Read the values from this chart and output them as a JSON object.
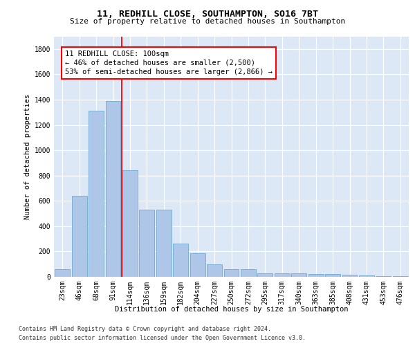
{
  "title1": "11, REDHILL CLOSE, SOUTHAMPTON, SO16 7BT",
  "title2": "Size of property relative to detached houses in Southampton",
  "xlabel": "Distribution of detached houses by size in Southampton",
  "ylabel": "Number of detached properties",
  "categories": [
    "23sqm",
    "46sqm",
    "68sqm",
    "91sqm",
    "114sqm",
    "136sqm",
    "159sqm",
    "182sqm",
    "204sqm",
    "227sqm",
    "250sqm",
    "272sqm",
    "295sqm",
    "317sqm",
    "340sqm",
    "363sqm",
    "385sqm",
    "408sqm",
    "431sqm",
    "453sqm",
    "476sqm"
  ],
  "values": [
    60,
    640,
    1310,
    1390,
    840,
    530,
    530,
    265,
    185,
    100,
    60,
    60,
    30,
    30,
    30,
    20,
    20,
    15,
    10,
    5,
    5
  ],
  "bar_color": "#aec6e8",
  "bar_edge_color": "#7aafd4",
  "red_line_x": 3.5,
  "annotation_text": "11 REDHILL CLOSE: 100sqm\n← 46% of detached houses are smaller (2,500)\n53% of semi-detached houses are larger (2,866) →",
  "ylim": [
    0,
    1900
  ],
  "yticks": [
    0,
    200,
    400,
    600,
    800,
    1000,
    1200,
    1400,
    1600,
    1800
  ],
  "footnote1": "Contains HM Land Registry data © Crown copyright and database right 2024.",
  "footnote2": "Contains public sector information licensed under the Open Government Licence v3.0.",
  "plot_bg_color": "#dce8f5",
  "title1_fontsize": 9.5,
  "title2_fontsize": 8.0,
  "ylabel_fontsize": 7.5,
  "xlabel_fontsize": 7.5,
  "tick_fontsize": 7.0,
  "annot_fontsize": 7.5,
  "footnote_fontsize": 6.0
}
